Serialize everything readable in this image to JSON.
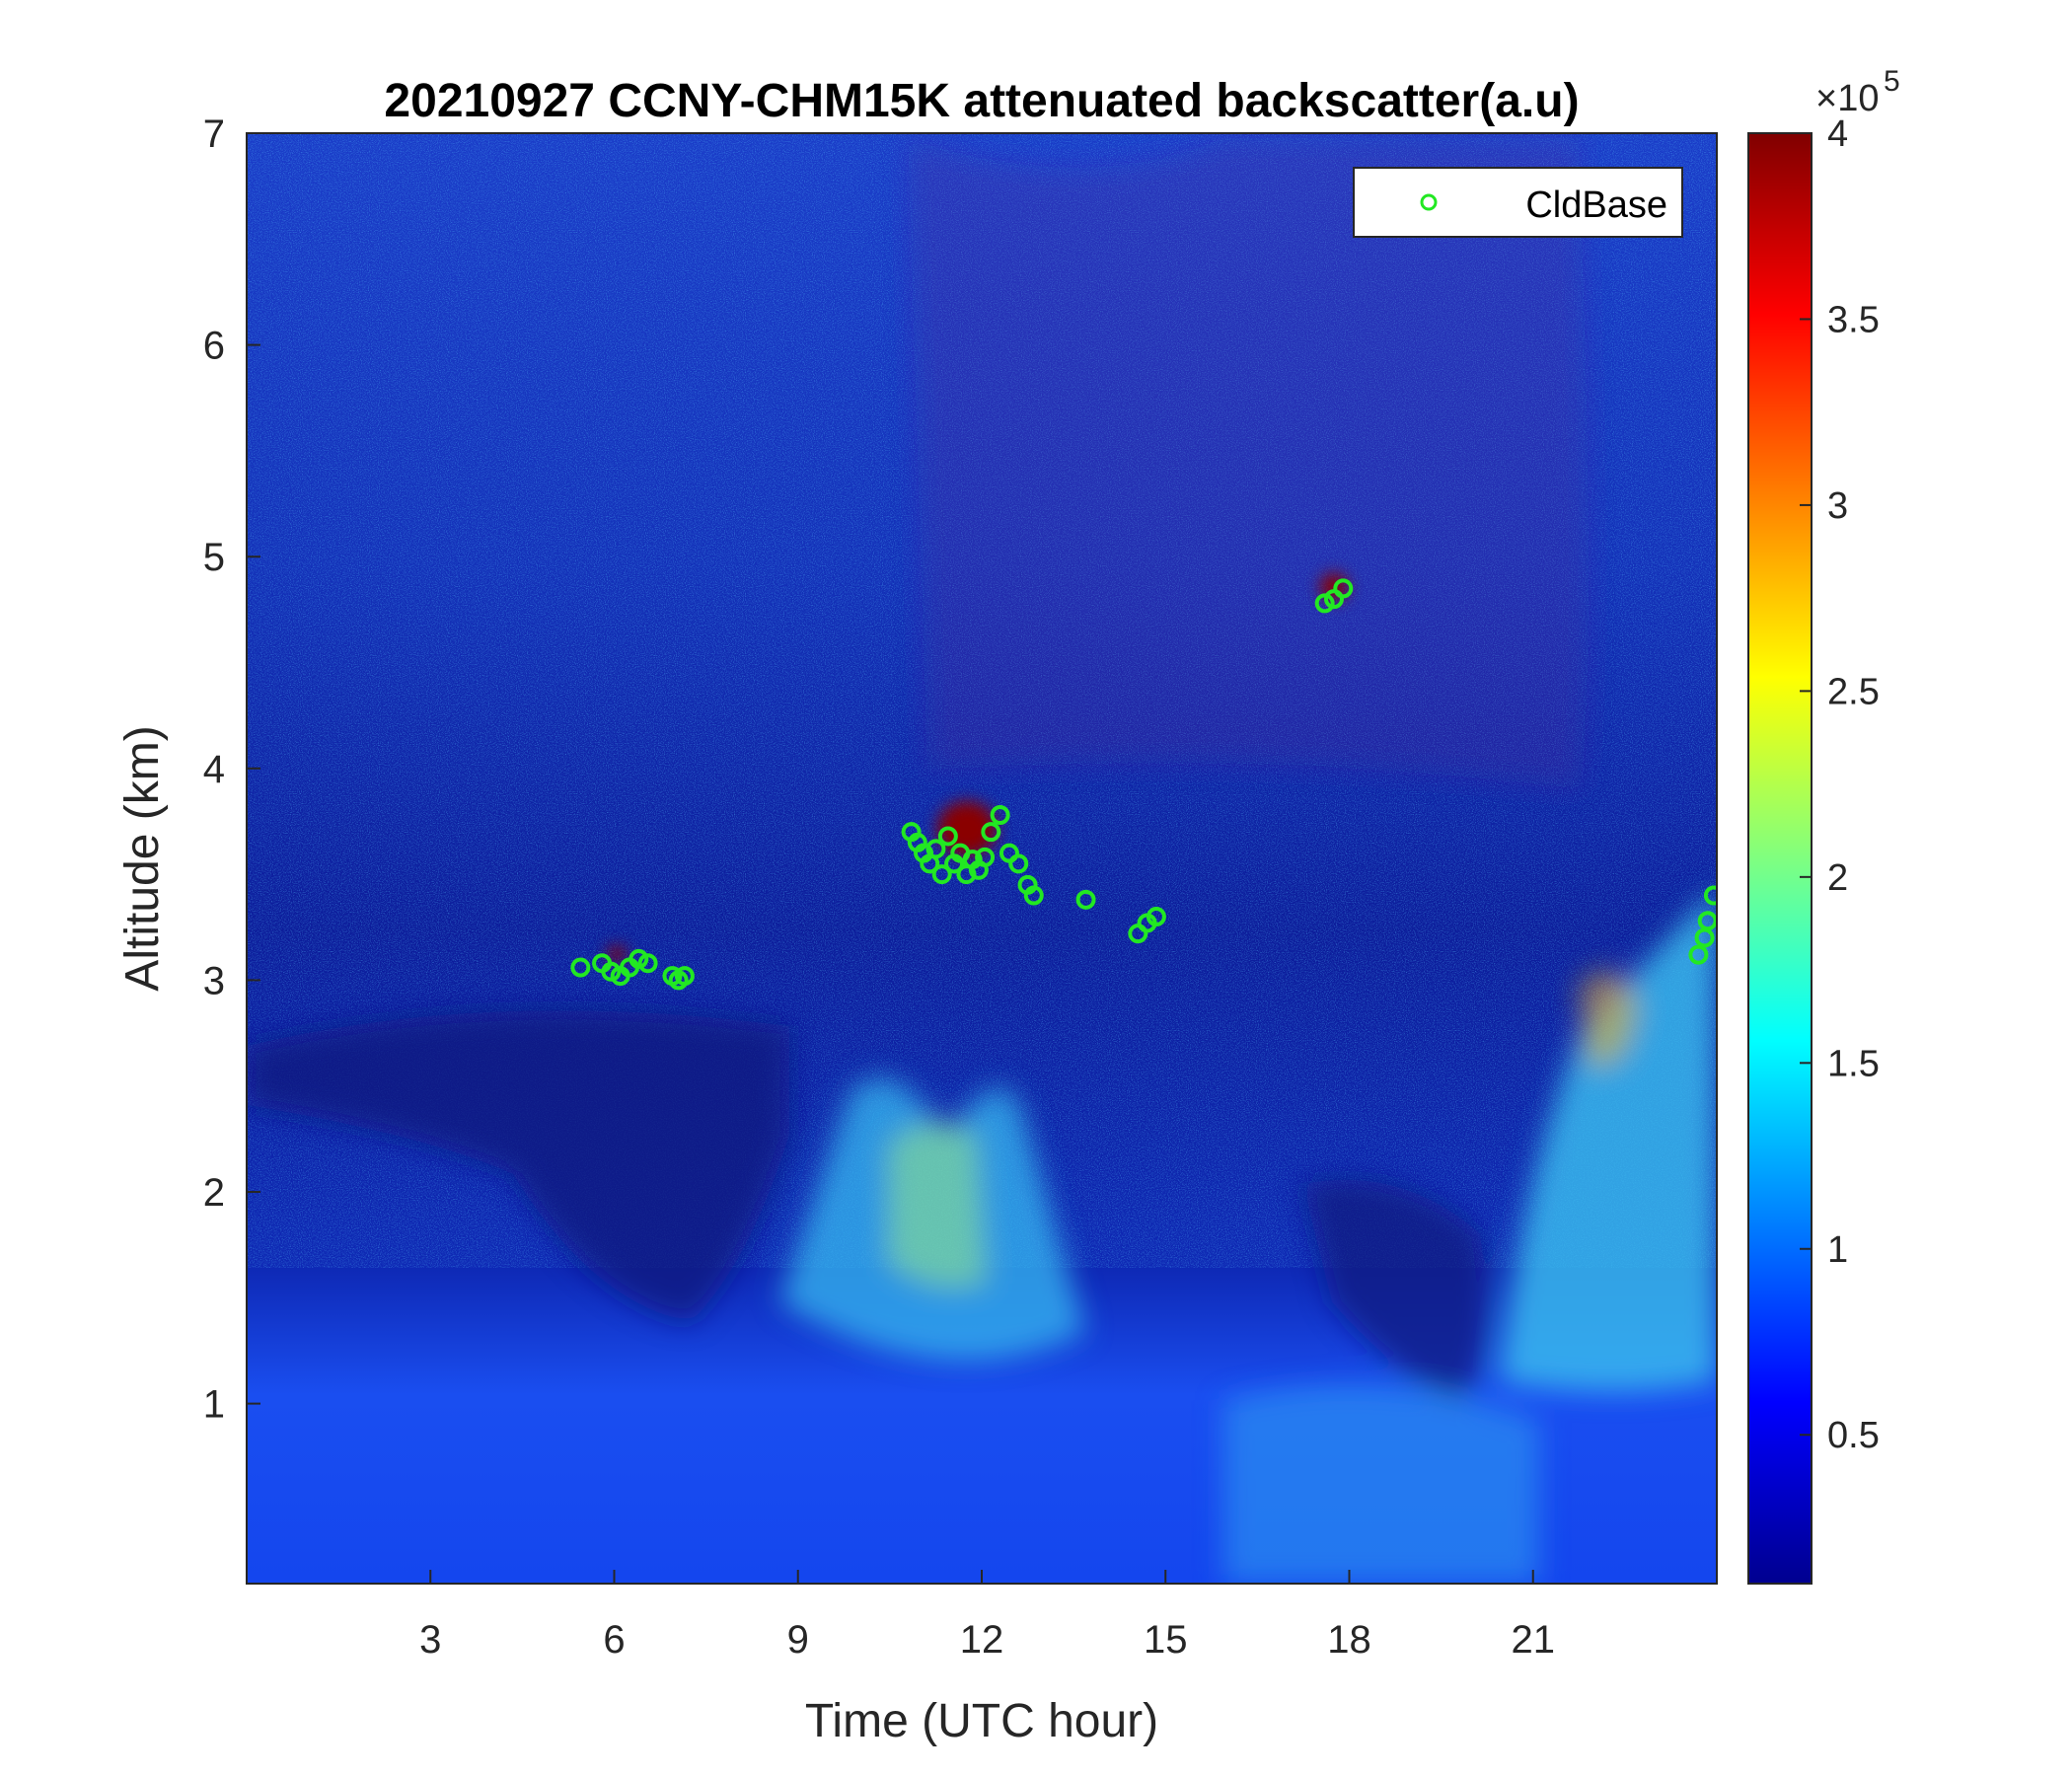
{
  "colors": {
    "background_low": "#0a1f9e",
    "cloud_marker": "#22e822",
    "axis": "#262626"
  },
  "chart_data": {
    "type": "heatmap",
    "title": "20210927 CCNY-CHM15K attenuated backscatter(a.u)",
    "xlabel": "Time (UTC hour)",
    "ylabel": "Altitude (km)",
    "xlim": [
      0,
      24
    ],
    "ylim": [
      0.15,
      7
    ],
    "xticks": [
      3,
      6,
      9,
      12,
      15,
      18,
      21
    ],
    "yticks": [
      1,
      2,
      3,
      4,
      5,
      6,
      7
    ],
    "colormap": "jet",
    "colorbar": {
      "range": [
        0.1,
        4
      ],
      "ticks": [
        0.5,
        1,
        1.5,
        2,
        2.5,
        3,
        3.5,
        4
      ],
      "multiplier": "×10",
      "exponent": "5"
    },
    "legend": {
      "position": "top-right",
      "entries": [
        "CldBase"
      ]
    },
    "series": [
      {
        "name": "CldBase",
        "marker": "circle",
        "points": [
          [
            5.45,
            3.06
          ],
          [
            5.8,
            3.08
          ],
          [
            5.95,
            3.04
          ],
          [
            6.1,
            3.02
          ],
          [
            6.25,
            3.06
          ],
          [
            6.4,
            3.1
          ],
          [
            6.55,
            3.08
          ],
          [
            6.95,
            3.02
          ],
          [
            7.05,
            3.0
          ],
          [
            7.15,
            3.02
          ],
          [
            10.85,
            3.7
          ],
          [
            10.95,
            3.65
          ],
          [
            11.05,
            3.6
          ],
          [
            11.15,
            3.55
          ],
          [
            11.25,
            3.62
          ],
          [
            11.35,
            3.5
          ],
          [
            11.45,
            3.68
          ],
          [
            11.55,
            3.55
          ],
          [
            11.65,
            3.6
          ],
          [
            11.75,
            3.5
          ],
          [
            11.85,
            3.57
          ],
          [
            11.95,
            3.52
          ],
          [
            12.05,
            3.58
          ],
          [
            12.15,
            3.7
          ],
          [
            12.3,
            3.78
          ],
          [
            12.45,
            3.6
          ],
          [
            12.6,
            3.55
          ],
          [
            12.75,
            3.45
          ],
          [
            12.85,
            3.4
          ],
          [
            13.7,
            3.38
          ],
          [
            14.55,
            3.22
          ],
          [
            14.7,
            3.27
          ],
          [
            14.85,
            3.3
          ],
          [
            17.6,
            4.78
          ],
          [
            17.75,
            4.8
          ],
          [
            17.9,
            4.85
          ],
          [
            23.7,
            3.12
          ],
          [
            23.8,
            3.2
          ],
          [
            23.85,
            3.28
          ],
          [
            23.95,
            3.4
          ]
        ]
      }
    ]
  }
}
